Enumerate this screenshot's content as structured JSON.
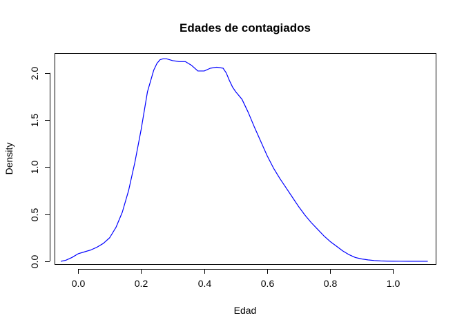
{
  "chart_data": {
    "type": "line",
    "title": "Edades de contagiados",
    "xlabel": "Edad",
    "ylabel": "Density",
    "xlim": [
      -0.075,
      1.135
    ],
    "ylim": [
      -0.03,
      2.21
    ],
    "x_ticks": [
      0.0,
      0.2,
      0.4,
      0.6,
      0.8,
      1.0
    ],
    "x_tick_labels": [
      "0.0",
      "0.2",
      "0.4",
      "0.6",
      "0.8",
      "1.0"
    ],
    "y_ticks": [
      0.0,
      0.5,
      1.0,
      1.5,
      2.0
    ],
    "y_tick_labels": [
      "0.0",
      "0.5",
      "1.0",
      "1.5",
      "2.0"
    ],
    "grid": false,
    "series": [
      {
        "name": "density",
        "color": "#0000ff",
        "x": [
          -0.055,
          -0.04,
          -0.02,
          0.0,
          0.02,
          0.04,
          0.06,
          0.08,
          0.1,
          0.12,
          0.14,
          0.16,
          0.18,
          0.2,
          0.22,
          0.24,
          0.25,
          0.26,
          0.27,
          0.28,
          0.29,
          0.3,
          0.32,
          0.34,
          0.36,
          0.38,
          0.4,
          0.42,
          0.44,
          0.46,
          0.47,
          0.48,
          0.49,
          0.5,
          0.52,
          0.54,
          0.56,
          0.58,
          0.6,
          0.62,
          0.64,
          0.66,
          0.68,
          0.7,
          0.72,
          0.74,
          0.76,
          0.78,
          0.8,
          0.82,
          0.84,
          0.86,
          0.88,
          0.9,
          0.92,
          0.94,
          0.96,
          0.98,
          1.0,
          1.02,
          1.05,
          1.08,
          1.11
        ],
        "y": [
          0.0,
          0.01,
          0.04,
          0.08,
          0.1,
          0.12,
          0.15,
          0.19,
          0.25,
          0.36,
          0.52,
          0.75,
          1.05,
          1.4,
          1.8,
          2.03,
          2.1,
          2.14,
          2.15,
          2.15,
          2.14,
          2.13,
          2.12,
          2.12,
          2.08,
          2.02,
          2.02,
          2.05,
          2.06,
          2.05,
          2.0,
          1.92,
          1.85,
          1.8,
          1.72,
          1.58,
          1.42,
          1.27,
          1.12,
          0.99,
          0.88,
          0.78,
          0.68,
          0.58,
          0.49,
          0.41,
          0.34,
          0.27,
          0.21,
          0.16,
          0.11,
          0.07,
          0.04,
          0.025,
          0.015,
          0.008,
          0.004,
          0.002,
          0.001,
          0.0005,
          0.0002,
          0.0001,
          0.0
        ]
      }
    ]
  }
}
